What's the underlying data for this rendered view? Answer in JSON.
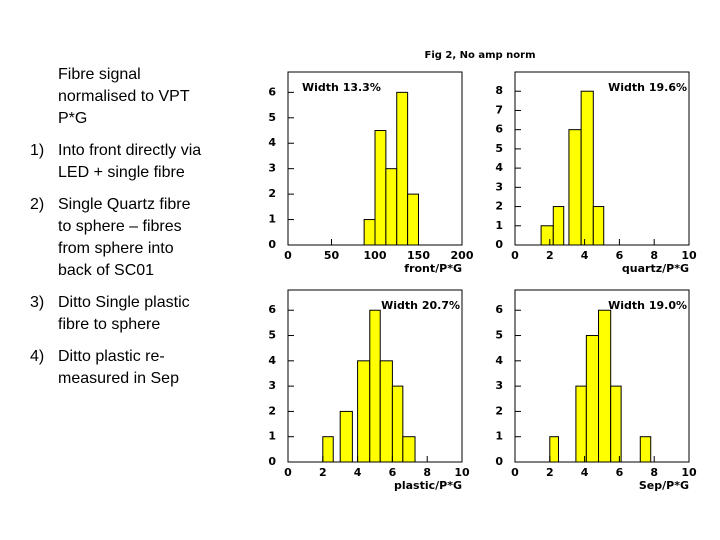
{
  "slide": {
    "intro": "Fibre signal normalised to VPT P*G",
    "items": [
      {
        "number": "1)",
        "text": "Into front directly via LED + single fibre"
      },
      {
        "number": "2)",
        "text": "Single Quartz fibre to sphere – fibres from sphere into back of SC01"
      },
      {
        "number": "3)",
        "text": "Ditto Single plastic fibre to sphere"
      },
      {
        "number": "4)",
        "text": "Ditto plastic re-measured in Sep"
      }
    ],
    "figure_title": "Fig 2, No amp norm"
  },
  "chart_data": [
    {
      "type": "histogram",
      "xlabel": "front/P*G",
      "annotation": "Width 13.3%",
      "color": "#ffff00",
      "bins": [
        87.5,
        100,
        112.5,
        125,
        137.5,
        150
      ],
      "values": [
        1,
        4.5,
        3,
        6,
        2
      ],
      "xlim": [
        0,
        200
      ],
      "xticks": [
        0,
        50,
        100,
        150,
        200
      ],
      "ylim": [
        0,
        6.8
      ],
      "yticks": [
        0,
        1,
        2,
        3,
        4,
        5,
        6
      ]
    },
    {
      "type": "histogram",
      "xlabel": "quartz/P*G",
      "annotation": "Width 19.6%",
      "color": "#ffff00",
      "bins": [
        1.5,
        2.2,
        2.8,
        3.1,
        3.8,
        4.5,
        5.1
      ],
      "values": [
        1,
        2,
        0,
        6,
        8,
        2
      ],
      "xlim": [
        0,
        10
      ],
      "xticks": [
        0,
        2,
        4,
        6,
        8,
        10
      ],
      "ylim": [
        0,
        9
      ],
      "yticks": [
        0,
        1,
        2,
        3,
        4,
        5,
        6,
        7,
        8
      ]
    },
    {
      "type": "histogram",
      "xlabel": "plastic/P*G",
      "annotation": "Width 20.7%",
      "color": "#ffff00",
      "bins": [
        2,
        2.6,
        3,
        3.7,
        4,
        4.7,
        5.3,
        6,
        6.6,
        7.3
      ],
      "values": [
        1,
        0,
        2,
        0,
        4,
        6,
        4,
        3,
        1
      ],
      "xlim": [
        0,
        10
      ],
      "xticks": [
        0,
        2,
        4,
        6,
        8,
        10
      ],
      "ylim": [
        0,
        6.8
      ],
      "yticks": [
        0,
        1,
        2,
        3,
        4,
        5,
        6
      ]
    },
    {
      "type": "histogram",
      "xlabel": "Sep/P*G",
      "annotation": "Width 19.0%",
      "color": "#ffff00",
      "bins": [
        2,
        2.5,
        3.5,
        4.1,
        4.8,
        5.5,
        6.1,
        7.2,
        7.8
      ],
      "values": [
        1,
        0,
        3,
        5,
        6,
        3,
        0,
        1
      ],
      "xlim": [
        0,
        10
      ],
      "xticks": [
        0,
        2,
        4,
        6,
        8,
        10
      ],
      "ylim": [
        0,
        6.8
      ],
      "yticks": [
        0,
        1,
        2,
        3,
        4,
        5,
        6
      ]
    }
  ]
}
